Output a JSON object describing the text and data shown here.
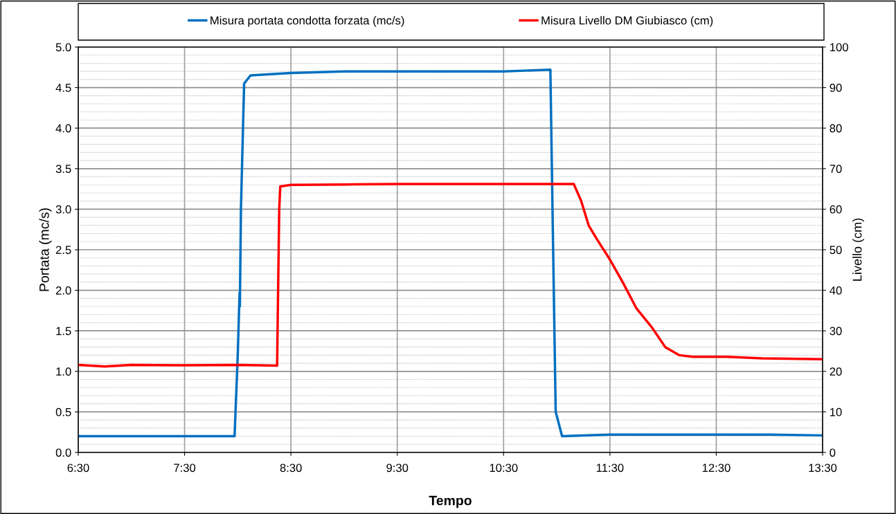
{
  "chart_data": {
    "type": "line",
    "xlabel": "Tempo",
    "ylabel": "Portata (mc/s)",
    "y2label": "Livello (cm)",
    "xlim": [
      6.5,
      13.5
    ],
    "xticks": [
      {
        "value": 6.5,
        "label": "6:30"
      },
      {
        "value": 7.5,
        "label": "7:30"
      },
      {
        "value": 8.5,
        "label": "8:30"
      },
      {
        "value": 9.5,
        "label": "9:30"
      },
      {
        "value": 10.5,
        "label": "10:30"
      },
      {
        "value": 11.5,
        "label": "11:30"
      },
      {
        "value": 12.5,
        "label": "12:30"
      },
      {
        "value": 13.5,
        "label": "13:30"
      }
    ],
    "ylim": [
      0,
      5
    ],
    "yticks": [
      {
        "value": 0,
        "label": "0.0"
      },
      {
        "value": 0.5,
        "label": "0.5"
      },
      {
        "value": 1,
        "label": "1.0"
      },
      {
        "value": 1.5,
        "label": "1.5"
      },
      {
        "value": 2,
        "label": "2.0"
      },
      {
        "value": 2.5,
        "label": "2.5"
      },
      {
        "value": 3,
        "label": "3.0"
      },
      {
        "value": 3.5,
        "label": "3.5"
      },
      {
        "value": 4,
        "label": "4.0"
      },
      {
        "value": 4.5,
        "label": "4.5"
      },
      {
        "value": 5,
        "label": "5.0"
      }
    ],
    "y2lim": [
      0,
      100
    ],
    "y2ticks": [
      0,
      10,
      20,
      30,
      40,
      50,
      60,
      70,
      80,
      90,
      100
    ],
    "grid": true,
    "legend": "top",
    "marker": "none",
    "line_style": "solid",
    "series": [
      {
        "name": "Misura portata condotta forzata (mc/s)",
        "color": "#0070c0",
        "x": [
          6.5,
          7.0,
          7.5,
          7.97,
          8.0,
          8.017,
          8.02,
          8.03,
          8.06,
          8.12,
          8.5,
          9.0,
          9.5,
          10.0,
          10.5,
          10.94,
          10.96,
          10.99,
          11.0,
          11.05,
          11.5,
          12.0,
          12.5,
          13.0,
          13.5
        ],
        "values": [
          0.2,
          0.2,
          0.2,
          0.2,
          1.2,
          1.97,
          1.8,
          3.0,
          4.55,
          4.65,
          4.68,
          4.7,
          4.7,
          4.7,
          4.7,
          4.72,
          3.0,
          0.5,
          0.45,
          0.2,
          0.22,
          0.22,
          0.22,
          0.22,
          0.21
        ]
      },
      {
        "name": "Misura Livello DM Giubiasco (cm)",
        "color": "#ff0000",
        "axis": "y2",
        "x": [
          6.5,
          6.75,
          7.0,
          7.5,
          8.0,
          8.37,
          8.39,
          8.4,
          8.5,
          9.0,
          9.5,
          10.0,
          10.5,
          11.0,
          11.16,
          11.23,
          11.3,
          11.38,
          11.49,
          11.62,
          11.75,
          11.89,
          12.02,
          12.15,
          12.28,
          12.6,
          12.93,
          13.5
        ],
        "values": [
          21.6,
          21.2,
          21.6,
          21.5,
          21.6,
          21.4,
          60,
          65.6,
          66,
          66.1,
          66.2,
          66.2,
          66.2,
          66.2,
          66.2,
          62,
          56,
          52.5,
          48,
          42,
          35.5,
          31,
          26,
          24,
          23.6,
          23.6,
          23.2,
          23
        ]
      }
    ]
  }
}
